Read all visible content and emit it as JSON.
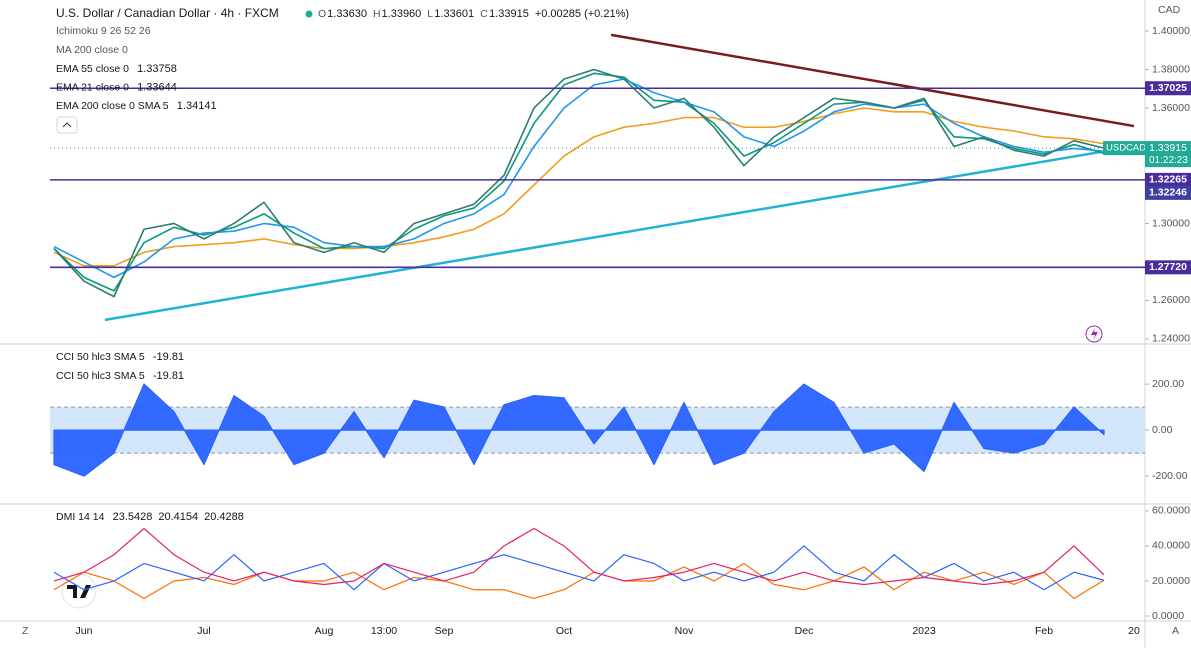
{
  "header": {
    "symbol": "U.S. Dollar / Canadian Dollar · 4h · FXCM",
    "ohlc": [
      {
        "label": "O",
        "value": "1.33630"
      },
      {
        "label": "H",
        "value": "1.33960"
      },
      {
        "label": "L",
        "value": "1.33601"
      },
      {
        "label": "C",
        "value": "1.33915"
      }
    ],
    "change": "+0.00285 (+0.21%)",
    "currency": "CAD",
    "hidden_studies": [
      "Ichimoku 9 26 52 26",
      "MA 200 close 0"
    ],
    "corner_buttons": [
      "Z",
      "A"
    ]
  },
  "chart_data": [
    {
      "type": "line",
      "categories": [
        null,
        "Jun",
        null,
        null,
        null,
        "Jul",
        null,
        null,
        null,
        "Aug",
        null,
        "13:00",
        null,
        "Sep",
        null,
        null,
        null,
        "Oct",
        null,
        null,
        null,
        "Nov",
        null,
        null,
        null,
        "Dec",
        null,
        null,
        null,
        "2023",
        null,
        null,
        null,
        "Feb",
        null,
        null,
        "20"
      ],
      "ylim": [
        1.2379,
        1.4161
      ],
      "yticks": [
        {
          "value": 1.24,
          "label": "1.24000"
        },
        {
          "value": 1.26,
          "label": "1.26000"
        },
        {
          "value": 1.3,
          "label": "1.30000"
        },
        {
          "value": 1.36,
          "label": "1.36000"
        },
        {
          "value": 1.38,
          "label": "1.38000"
        },
        {
          "value": 1.4,
          "label": "1.40000"
        }
      ],
      "series": [
        {
          "name": "USDCAD",
          "color": "#2e7d6e",
          "tag_color": "#22ab94",
          "last": 1.33915,
          "countdown": "01:22:23",
          "values": [
            1.287,
            1.27,
            1.262,
            1.297,
            1.3,
            1.292,
            1.3,
            1.311,
            1.29,
            1.285,
            1.29,
            1.285,
            1.3,
            1.305,
            1.31,
            1.325,
            1.36,
            1.375,
            1.38,
            1.375,
            1.36,
            1.365,
            1.35,
            1.33,
            1.345,
            1.355,
            1.365,
            1.363,
            1.36,
            1.365,
            1.34,
            1.345,
            1.338,
            1.335,
            1.343,
            1.33915,
            null
          ]
        },
        {
          "name": "EMA 55 close 0",
          "color": "#2196f3",
          "last": 1.33758,
          "values": [
            1.288,
            1.28,
            1.272,
            1.28,
            1.292,
            1.295,
            1.296,
            1.3,
            1.298,
            1.29,
            1.288,
            1.288,
            1.292,
            1.3,
            1.305,
            1.315,
            1.34,
            1.36,
            1.372,
            1.375,
            1.368,
            1.363,
            1.358,
            1.345,
            1.34,
            1.348,
            1.358,
            1.362,
            1.36,
            1.362,
            1.352,
            1.345,
            1.34,
            1.337,
            1.339,
            1.33758,
            null
          ]
        },
        {
          "name": "EMA 21 close 0",
          "color": "#089981",
          "last": 1.33644,
          "values": [
            1.287,
            1.272,
            1.265,
            1.29,
            1.298,
            1.294,
            1.298,
            1.305,
            1.295,
            1.287,
            1.288,
            1.287,
            1.297,
            1.304,
            1.308,
            1.322,
            1.352,
            1.372,
            1.378,
            1.376,
            1.364,
            1.363,
            1.352,
            1.335,
            1.342,
            1.352,
            1.362,
            1.363,
            1.36,
            1.364,
            1.345,
            1.344,
            1.339,
            1.336,
            1.341,
            1.33644,
            null
          ]
        },
        {
          "name": "EMA 200 close 0 SMA 5",
          "color": "#f59c1a",
          "last": 1.34141,
          "values": [
            1.285,
            1.278,
            1.278,
            1.285,
            1.288,
            1.289,
            1.29,
            1.292,
            1.289,
            1.287,
            1.287,
            1.288,
            1.29,
            1.293,
            1.297,
            1.305,
            1.32,
            1.335,
            1.345,
            1.35,
            1.352,
            1.355,
            1.355,
            1.35,
            1.35,
            1.353,
            1.357,
            1.36,
            1.358,
            1.358,
            1.353,
            1.35,
            1.348,
            1.345,
            1.344,
            1.34141,
            null
          ]
        }
      ],
      "levels": [
        {
          "value": 1.37025,
          "color": "#4a2c9c",
          "line": true
        },
        {
          "value": 1.32265,
          "color": "#4a2c9c",
          "line": true
        },
        {
          "value": 1.32246,
          "color": "#3f3f9e",
          "line": false
        },
        {
          "value": {
            "value": 1.2772,
            "label": "1.27720"
          },
          "color": "#4a2c9c",
          "line": true
        }
      ],
      "trendlines": [
        {
          "color": "#7b1a1a",
          "x": [
            18.57,
            36
          ],
          "y": [
            1.398,
            1.3506
          ]
        },
        {
          "color": "#1fb5cf",
          "x": [
            1.7,
            34.87
          ],
          "y": [
            1.2499,
            1.3371
          ]
        }
      ]
    },
    {
      "type": "area",
      "ylim": [
        -317,
        370
      ],
      "yticks": [
        {
          "value": 200,
          "label": "200.00"
        },
        {
          "value": 0,
          "label": "0.00"
        },
        {
          "value": -200,
          "label": "-200.00"
        }
      ],
      "band": [
        -100,
        100
      ],
      "band_color": "#d3e6fb",
      "legend": [
        {
          "name": "CCI 50 hlc3 SMA 5",
          "value": -19.81
        },
        {
          "name": "CCI 50 hlc3 SMA 5",
          "value": -19.81
        }
      ],
      "series": [
        {
          "color": "#2962ff",
          "values": [
            -150,
            -200,
            -100,
            200,
            80,
            -150,
            150,
            60,
            -150,
            -100,
            80,
            -120,
            130,
            100,
            -150,
            110,
            150,
            140,
            -60,
            100,
            -150,
            120,
            -150,
            -100,
            80,
            200,
            120,
            -100,
            -60,
            -180,
            120,
            -80,
            -100,
            -60,
            100,
            -19.81,
            null
          ]
        }
      ]
    },
    {
      "type": "line",
      "ylim": [
        -2.29,
        63.4
      ],
      "yticks": [
        {
          "value": 0,
          "label": "0.0000"
        },
        {
          "value": 20,
          "label": "20.0000"
        },
        {
          "value": 40,
          "label": "40.0000"
        },
        {
          "value": 60,
          "label": "60.0000"
        }
      ],
      "legend_title": "DMI 14 14",
      "series": [
        {
          "color": "#e91e63",
          "last": 23.5428,
          "values": [
            20,
            25,
            35,
            50,
            35,
            25,
            20,
            25,
            20,
            18,
            20,
            30,
            25,
            20,
            25,
            40,
            50,
            40,
            25,
            20,
            22,
            25,
            30,
            25,
            20,
            25,
            20,
            18,
            20,
            22,
            20,
            18,
            20,
            25,
            40,
            23.5428,
            null
          ]
        },
        {
          "color": "#2962ff",
          "last": 20.4154,
          "values": [
            25,
            15,
            20,
            30,
            25,
            20,
            35,
            20,
            25,
            30,
            15,
            30,
            20,
            25,
            30,
            35,
            30,
            25,
            20,
            35,
            30,
            20,
            25,
            20,
            25,
            40,
            25,
            20,
            35,
            22,
            30,
            20,
            25,
            15,
            25,
            20.4154,
            null
          ]
        },
        {
          "color": "#ff6d00",
          "last": 20.4288,
          "values": [
            15,
            25,
            20,
            10,
            20,
            22,
            18,
            25,
            20,
            20,
            25,
            15,
            22,
            20,
            15,
            15,
            10,
            15,
            25,
            20,
            20,
            28,
            20,
            30,
            18,
            15,
            20,
            28,
            15,
            25,
            20,
            25,
            18,
            25,
            10,
            20.4288,
            null
          ]
        }
      ]
    }
  ]
}
